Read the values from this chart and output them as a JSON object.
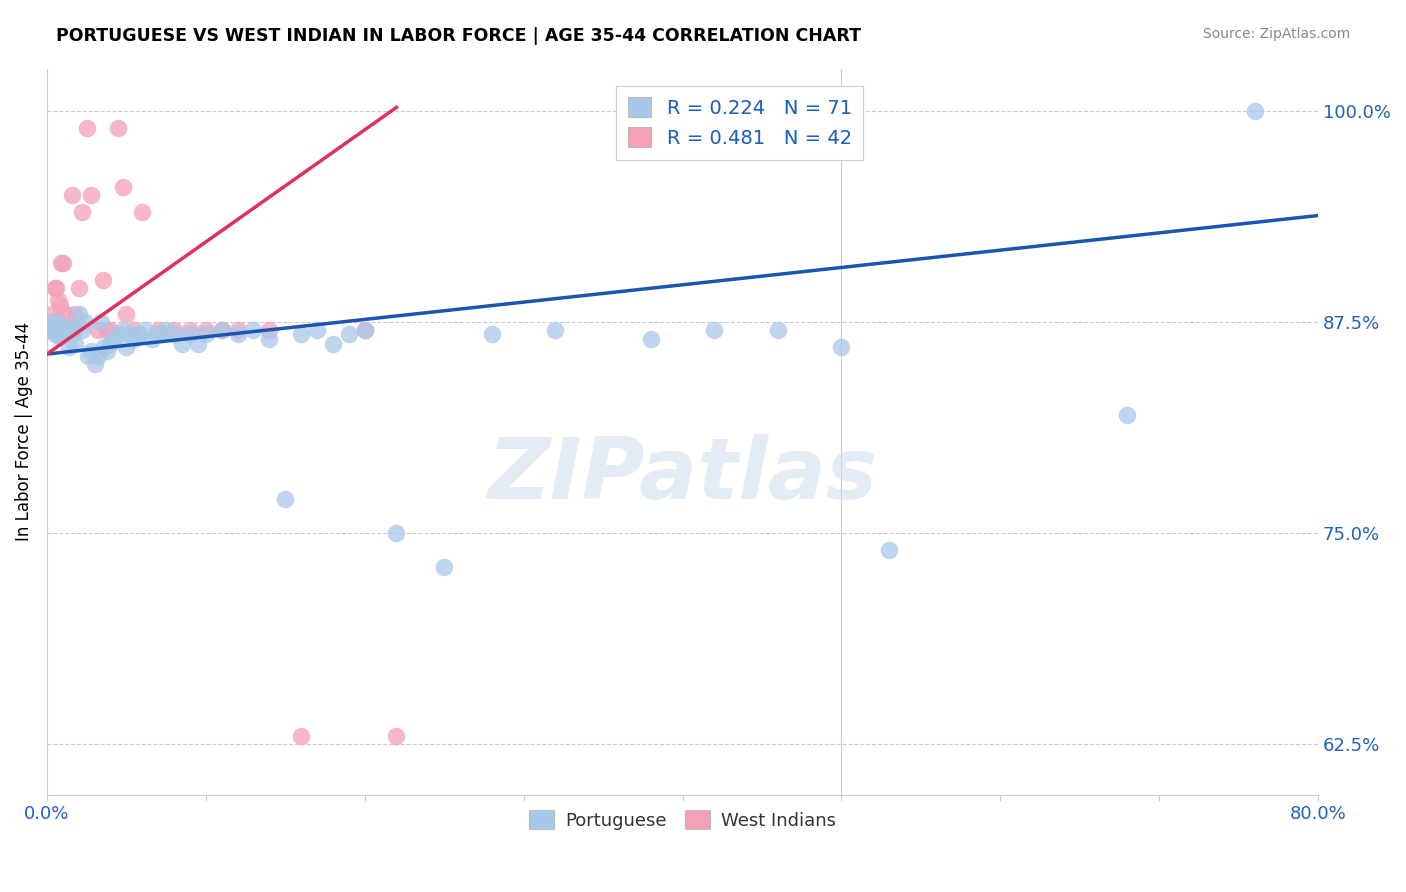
{
  "title": "PORTUGUESE VS WEST INDIAN IN LABOR FORCE | AGE 35-44 CORRELATION CHART",
  "source": "Source: ZipAtlas.com",
  "ylabel": "In Labor Force | Age 35-44",
  "xlim": [
    0.0,
    0.8
  ],
  "ylim": [
    0.595,
    1.025
  ],
  "xticks": [
    0.0,
    0.1,
    0.2,
    0.3,
    0.4,
    0.5,
    0.6,
    0.7,
    0.8
  ],
  "xticklabels": [
    "0.0%",
    "",
    "",
    "",
    "",
    "",
    "",
    "",
    "80.0%"
  ],
  "yticks": [
    0.625,
    0.75,
    0.875,
    1.0
  ],
  "yticklabels": [
    "62.5%",
    "75.0%",
    "87.5%",
    "100.0%"
  ],
  "portuguese_R": 0.224,
  "portuguese_N": 71,
  "west_indian_R": 0.481,
  "west_indian_N": 42,
  "portuguese_color": "#a8c8e8",
  "west_indian_color": "#f4a0b8",
  "trend_portuguese_color": "#1a56b0",
  "trend_west_indian_color": "#e03060",
  "watermark": "ZIPatlas",
  "portuguese_x": [
    0.002,
    0.003,
    0.004,
    0.005,
    0.005,
    0.006,
    0.006,
    0.007,
    0.007,
    0.008,
    0.008,
    0.009,
    0.009,
    0.01,
    0.01,
    0.011,
    0.012,
    0.013,
    0.014,
    0.015,
    0.016,
    0.017,
    0.018,
    0.02,
    0.022,
    0.024,
    0.026,
    0.028,
    0.03,
    0.032,
    0.034,
    0.036,
    0.038,
    0.04,
    0.042,
    0.045,
    0.048,
    0.05,
    0.052,
    0.055,
    0.058,
    0.062,
    0.066,
    0.07,
    0.075,
    0.08,
    0.085,
    0.09,
    0.095,
    0.1,
    0.11,
    0.12,
    0.13,
    0.14,
    0.15,
    0.16,
    0.17,
    0.18,
    0.19,
    0.2,
    0.22,
    0.25,
    0.28,
    0.32,
    0.38,
    0.42,
    0.46,
    0.5,
    0.53,
    0.68,
    0.76
  ],
  "portuguese_y": [
    0.87,
    0.875,
    0.872,
    0.868,
    0.872,
    0.87,
    0.875,
    0.868,
    0.871,
    0.866,
    0.87,
    0.873,
    0.868,
    0.87,
    0.872,
    0.869,
    0.872,
    0.868,
    0.86,
    0.87,
    0.868,
    0.87,
    0.862,
    0.88,
    0.87,
    0.875,
    0.855,
    0.858,
    0.85,
    0.855,
    0.875,
    0.86,
    0.858,
    0.862,
    0.865,
    0.868,
    0.87,
    0.86,
    0.868,
    0.865,
    0.868,
    0.87,
    0.865,
    0.868,
    0.87,
    0.868,
    0.862,
    0.868,
    0.862,
    0.868,
    0.87,
    0.868,
    0.87,
    0.865,
    0.77,
    0.868,
    0.87,
    0.862,
    0.868,
    0.87,
    0.75,
    0.73,
    0.868,
    0.87,
    0.865,
    0.87,
    0.87,
    0.86,
    0.74,
    0.82,
    1.0
  ],
  "west_indian_x": [
    0.002,
    0.003,
    0.003,
    0.004,
    0.005,
    0.005,
    0.006,
    0.007,
    0.007,
    0.008,
    0.008,
    0.009,
    0.01,
    0.011,
    0.012,
    0.013,
    0.015,
    0.016,
    0.018,
    0.02,
    0.022,
    0.025,
    0.028,
    0.032,
    0.035,
    0.038,
    0.04,
    0.045,
    0.048,
    0.05,
    0.055,
    0.06,
    0.07,
    0.08,
    0.09,
    0.1,
    0.11,
    0.12,
    0.14,
    0.16,
    0.2,
    0.22
  ],
  "west_indian_y": [
    0.87,
    0.88,
    0.875,
    0.87,
    0.895,
    0.872,
    0.895,
    0.888,
    0.876,
    0.885,
    0.87,
    0.91,
    0.91,
    0.871,
    0.88,
    0.87,
    0.87,
    0.95,
    0.88,
    0.895,
    0.94,
    0.99,
    0.95,
    0.87,
    0.9,
    0.87,
    0.87,
    0.99,
    0.955,
    0.88,
    0.87,
    0.94,
    0.87,
    0.87,
    0.87,
    0.87,
    0.87,
    0.87,
    0.87,
    0.63,
    0.87,
    0.63
  ],
  "trend_port_x0": 0.0,
  "trend_port_x1": 0.8,
  "trend_port_y0": 0.856,
  "trend_port_y1": 0.938,
  "trend_wi_x0": 0.0,
  "trend_wi_x1": 0.22,
  "trend_wi_y0": 0.856,
  "trend_wi_y1": 1.002
}
